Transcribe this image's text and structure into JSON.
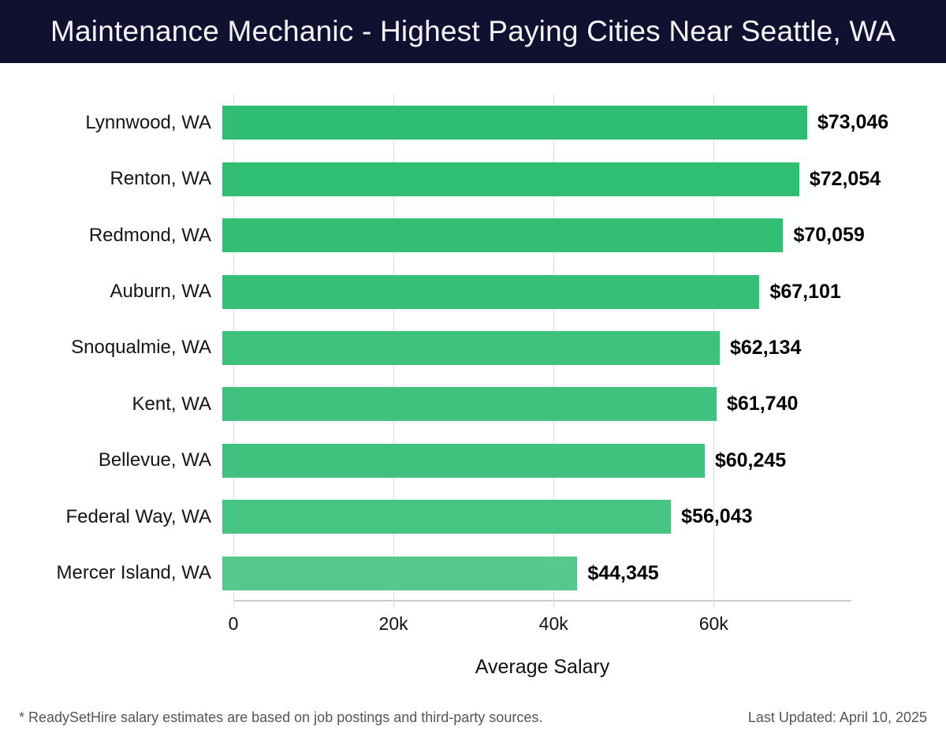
{
  "header": {
    "title": "Maintenance Mechanic - Highest Paying Cities Near Seattle, WA",
    "bg_color": "#111030",
    "text_color": "#f5f5f8"
  },
  "chart_data": {
    "type": "bar",
    "orientation": "horizontal",
    "title": "Maintenance Mechanic - Highest Paying Cities Near Seattle, WA",
    "categories": [
      "Lynnwood, WA",
      "Renton, WA",
      "Redmond, WA",
      "Auburn, WA",
      "Snoqualmie, WA",
      "Kent, WA",
      "Bellevue, WA",
      "Federal Way, WA",
      "Mercer Island, WA"
    ],
    "values": [
      73046,
      72054,
      70059,
      67101,
      62134,
      61740,
      60245,
      56043,
      44345
    ],
    "value_labels": [
      "$73,046",
      "$72,054",
      "$70,059",
      "$67,101",
      "$62,134",
      "$61,740",
      "$60,245",
      "$56,043",
      "$44,345"
    ],
    "bar_colors": [
      "#2ebd72",
      "#30be73",
      "#32bf74",
      "#36c077",
      "#3dc27c",
      "#3ec27d",
      "#3fc27e",
      "#45c482",
      "#55c98d"
    ],
    "xlabel": "Average Salary",
    "xlim": [
      0,
      77200
    ],
    "xticks": [
      {
        "value": 0,
        "label": "0"
      },
      {
        "value": 20000,
        "label": "20k"
      },
      {
        "value": 40000,
        "label": "40k"
      },
      {
        "value": 60000,
        "label": "60k"
      }
    ],
    "grid": true,
    "gridline_color": "#dcdcdc",
    "axis_line_color": "#cccccc",
    "legend": "none"
  },
  "footer": {
    "disclaimer": "* ReadySetHire salary estimates are based on job postings and third-party sources.",
    "last_updated": "Last Updated: April 10, 2025"
  }
}
